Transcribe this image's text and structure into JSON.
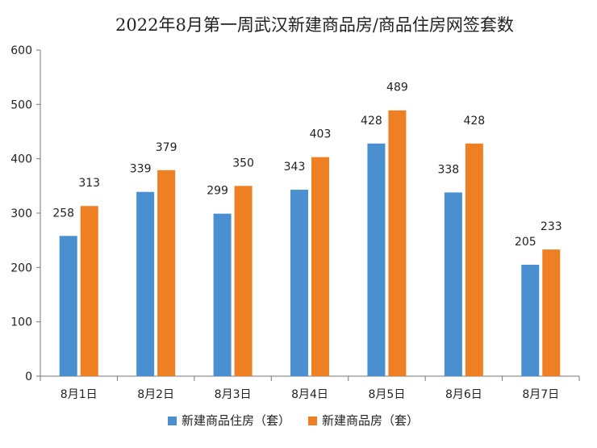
{
  "chart_data": {
    "type": "bar",
    "title": "2022年8月第一周武汉新建商品房/商品住房网签套数",
    "xlabel": "",
    "ylabel": "",
    "ylim": [
      0,
      600
    ],
    "yticks": [
      "0",
      "100",
      "200",
      "300",
      "400",
      "500",
      "600"
    ],
    "categories": [
      "8月1日",
      "8月2日",
      "8月3日",
      "8月4日",
      "8月5日",
      "8月6日",
      "8月7日"
    ],
    "series": [
      {
        "name": "新建商品住房（套）",
        "color": "#4a90d0",
        "values": [
          258,
          339,
          299,
          343,
          428,
          338,
          205
        ]
      },
      {
        "name": "新建商品房（套）",
        "color": "#ee7f22",
        "values": [
          313,
          379,
          350,
          403,
          489,
          428,
          233
        ]
      }
    ],
    "legend_position": "bottom",
    "grid": false
  }
}
